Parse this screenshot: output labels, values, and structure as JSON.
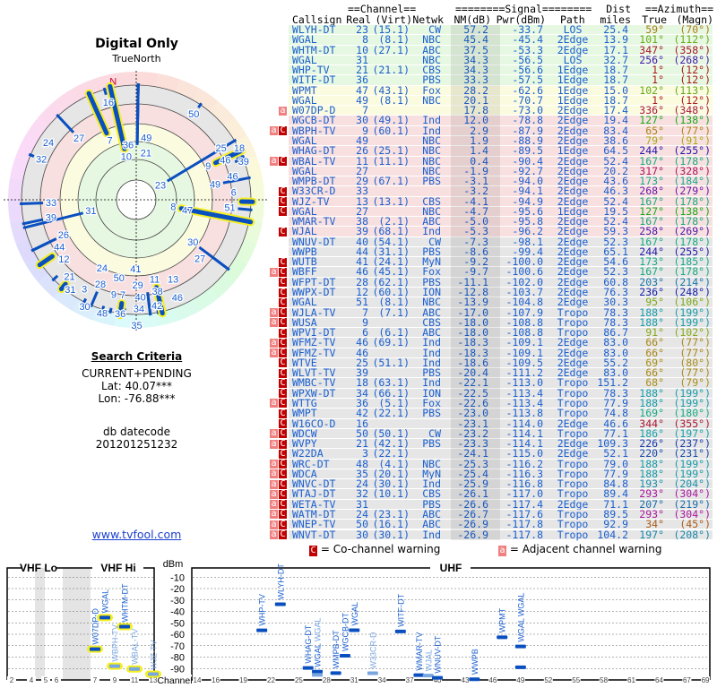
{
  "left_panel": {
    "title": "Digital Only",
    "north_label": "TrueNorth",
    "magnetic_north_label": "N",
    "search_criteria_heading": "Search Criteria",
    "criteria": "CURRENT+PENDING",
    "lat": "Lat: 40.07***",
    "lon": "Lon: -76.88***",
    "db_label": "db datecode",
    "db_value": "201201251232",
    "link": "www.tvfool.com"
  },
  "table": {
    "group_headers": {
      "channel": "==Channel==",
      "signal": "========Signal========",
      "dist": "Dist",
      "azimuth": "==Azimuth=="
    },
    "columns": [
      "Callsign",
      "Real",
      "(Virt)",
      "Netwk",
      "NM(dB)",
      "Pwr(dBm)",
      "Path",
      "miles",
      "True",
      "(Magn)"
    ],
    "row_fields": [
      "flag",
      "callsign",
      "real",
      "virt",
      "netwk",
      "nm",
      "pwr",
      "path",
      "dist",
      "true",
      "magn"
    ],
    "rows": [
      [
        "",
        "WLYH-DT",
        "23",
        "(15.1)",
        "CW",
        "57.2",
        "-33.7",
        "LOS",
        "25.4",
        "59°",
        "(70°)"
      ],
      [
        "",
        "WGAL",
        "8",
        "(8.1)",
        "NBC",
        "45.4",
        "-45.4",
        "2Edge",
        "13.9",
        "101°",
        "(112°)"
      ],
      [
        "",
        "WHTM-DT",
        "10",
        "(27.1)",
        "ABC",
        "37.5",
        "-53.3",
        "2Edge",
        "17.1",
        "347°",
        "(358°)"
      ],
      [
        "",
        "WGAL",
        "31",
        "",
        "NBC",
        "34.3",
        "-56.5",
        "LOS",
        "32.7",
        "256°",
        "(268°)"
      ],
      [
        "",
        "WHP-TV",
        "21",
        "(21.1)",
        "CBS",
        "34.3",
        "-56.6",
        "1Edge",
        "18.7",
        "1°",
        "(12°)"
      ],
      [
        "",
        "WITF-DT",
        "36",
        "",
        "PBS",
        "33.3",
        "-57.5",
        "1Edge",
        "18.7",
        "1°",
        "(12°)"
      ],
      [
        "",
        "WPMT",
        "47",
        "(43.1)",
        "Fox",
        "28.2",
        "-62.6",
        "1Edge",
        "15.0",
        "102°",
        "(113°)"
      ],
      [
        "",
        "WGAL",
        "49",
        "(8.1)",
        "NBC",
        "20.1",
        "-70.7",
        "1Edge",
        "18.7",
        "1°",
        "(12°)"
      ],
      [
        "a",
        "W07DP-D",
        "7",
        "",
        "",
        "17.8",
        "-73.0",
        "2Edge",
        "17.4",
        "336°",
        "(348°)"
      ],
      [
        "",
        "WGCB-DT",
        "30",
        "(49.1)",
        "Ind",
        "12.0",
        "-78.8",
        "2Edge",
        "19.4",
        "127°",
        "(138°)"
      ],
      [
        "aC",
        "WBPH-TV",
        "9",
        "(60.1)",
        "Ind",
        "2.9",
        "-87.9",
        "2Edge",
        "83.4",
        "65°",
        "(77°)"
      ],
      [
        "",
        "WGAL",
        "49",
        "",
        "NBC",
        "1.9",
        "-88.9",
        "2Edge",
        "38.6",
        "79°",
        "(91°)"
      ],
      [
        "",
        "WHAG-DT",
        "26",
        "(25.1)",
        "NBC",
        "1.4",
        "-89.5",
        "1Edge",
        "64.5",
        "244°",
        "(255°)"
      ],
      [
        "aC",
        "WBAL-TV",
        "11",
        "(11.1)",
        "NBC",
        "0.4",
        "-90.4",
        "2Edge",
        "52.4",
        "167°",
        "(178°)"
      ],
      [
        "",
        "WGAL",
        "27",
        "",
        "NBC",
        "-1.9",
        "-92.7",
        "2Edge",
        "20.2",
        "317°",
        "(328°)"
      ],
      [
        "",
        "WMPB-DT",
        "29",
        "(67.1)",
        "PBS",
        "-3.1",
        "-94.0",
        "2Edge",
        "43.6",
        "173°",
        "(184°)"
      ],
      [
        "C",
        "W33CR-D",
        "33",
        "",
        "",
        "-3.2",
        "-94.1",
        "2Edge",
        "46.3",
        "268°",
        "(279°)"
      ],
      [
        "C",
        "WJZ-TV",
        "13",
        "(13.1)",
        "CBS",
        "-4.1",
        "-94.9",
        "2Edge",
        "52.4",
        "167°",
        "(178°)"
      ],
      [
        "C",
        "WGAL",
        "27",
        "",
        "NBC",
        "-4.7",
        "-95.6",
        "1Edge",
        "19.5",
        "127°",
        "(138°)"
      ],
      [
        "",
        "WMAR-TV",
        "38",
        "(2.1)",
        "ABC",
        "-5.0",
        "-95.8",
        "2Edge",
        "52.4",
        "167°",
        "(178°)"
      ],
      [
        "C",
        "WJAL",
        "39",
        "(68.1)",
        "Ind",
        "-5.3",
        "-96.2",
        "2Edge",
        "59.3",
        "258°",
        "(269°)"
      ],
      [
        "",
        "WNUV-DT",
        "40",
        "(54.1)",
        "CW",
        "-7.3",
        "-98.1",
        "2Edge",
        "52.3",
        "167°",
        "(178°)"
      ],
      [
        "",
        "WWPB",
        "44",
        "(31.1)",
        "PBS",
        "-8.6",
        "-99.4",
        "2Edge",
        "65.1",
        "244°",
        "(255°)"
      ],
      [
        "C",
        "WUTB",
        "41",
        "(24.1)",
        "MyN",
        "-9.2",
        "-100.0",
        "2Edge",
        "54.6",
        "173°",
        "(185°)"
      ],
      [
        "aC",
        "WBFF",
        "46",
        "(45.1)",
        "Fox",
        "-9.7",
        "-100.6",
        "2Edge",
        "52.3",
        "167°",
        "(178°)"
      ],
      [
        "C",
        "WFPT-DT",
        "28",
        "(62.1)",
        "PBS",
        "-11.1",
        "-102.0",
        "2Edge",
        "60.8",
        "203°",
        "(214°)"
      ],
      [
        "C",
        "WWPX-DT",
        "12",
        "(60.1)",
        "ION",
        "-12.8",
        "-103.7",
        "2Edge",
        "76.3",
        "236°",
        "(248°)"
      ],
      [
        "C",
        "WGAL",
        "51",
        "(8.1)",
        "NBC",
        "-13.9",
        "-104.8",
        "2Edge",
        "30.3",
        "95°",
        "(106°)"
      ],
      [
        "aC",
        "WJLA-TV",
        "7",
        "(7.1)",
        "ABC",
        "-17.0",
        "-107.9",
        "Tropo",
        "78.3",
        "188°",
        "(199°)"
      ],
      [
        "aC",
        "WUSA",
        "9",
        "",
        "CBS",
        "-18.0",
        "-108.8",
        "Tropo",
        "78.3",
        "188°",
        "(199°)"
      ],
      [
        "C",
        "WPVI-DT",
        "6",
        "(6.1)",
        "ABC",
        "-18.0",
        "-108.8",
        "Tropo",
        "86.7",
        "91°",
        "(102°)"
      ],
      [
        "aC",
        "WFMZ-TV",
        "46",
        "(69.1)",
        "Ind",
        "-18.3",
        "-109.1",
        "2Edge",
        "83.0",
        "66°",
        "(77°)"
      ],
      [
        "aC",
        "WFMZ-TV",
        "46",
        "",
        "Ind",
        "-18.3",
        "-109.1",
        "2Edge",
        "83.0",
        "66°",
        "(77°)"
      ],
      [
        "C",
        "WTVE",
        "25",
        "(51.1)",
        "Ind",
        "-18.6",
        "-109.5",
        "2Edge",
        "55.2",
        "69°",
        "(80°)"
      ],
      [
        "C",
        "WLVT-TV",
        "39",
        "",
        "PBS",
        "-20.4",
        "-111.2",
        "2Edge",
        "83.0",
        "66°",
        "(77°)"
      ],
      [
        "C",
        "WMBC-TV",
        "18",
        "(63.1)",
        "Ind",
        "-22.1",
        "-113.0",
        "Tropo",
        "151.2",
        "68°",
        "(79°)"
      ],
      [
        "C",
        "WPXW-DT",
        "34",
        "(66.1)",
        "ION",
        "-22.5",
        "-113.4",
        "Tropo",
        "78.3",
        "188°",
        "(199°)"
      ],
      [
        "aC",
        "WTTG",
        "36",
        "(5.1)",
        "Fox",
        "-22.6",
        "-113.4",
        "Tropo",
        "77.9",
        "188°",
        "(199°)"
      ],
      [
        "C",
        "WMPT",
        "42",
        "(22.1)",
        "PBS",
        "-23.0",
        "-113.8",
        "Tropo",
        "74.8",
        "169°",
        "(180°)"
      ],
      [
        "C",
        "W16CO-D",
        "16",
        "",
        "",
        "-23.1",
        "-114.0",
        "2Edge",
        "46.6",
        "344°",
        "(355°)"
      ],
      [
        "aC",
        "WDCW",
        "50",
        "(50.1)",
        "CW",
        "-23.2",
        "-114.1",
        "Tropo",
        "77.1",
        "186°",
        "(197°)"
      ],
      [
        "aC",
        "WVPY",
        "21",
        "(42.1)",
        "PBS",
        "-23.3",
        "-114.1",
        "2Edge",
        "109.3",
        "226°",
        "(237°)"
      ],
      [
        "C",
        "W22DA",
        "3",
        "(22.1)",
        "",
        "-24.1",
        "-115.0",
        "2Edge",
        "52.1",
        "220°",
        "(231°)"
      ],
      [
        "aC",
        "WRC-DT",
        "48",
        "(4.1)",
        "NBC",
        "-25.3",
        "-116.2",
        "Tropo",
        "79.0",
        "188°",
        "(199°)"
      ],
      [
        "aC",
        "WDCA",
        "35",
        "(20.1)",
        "MyN",
        "-25.4",
        "-116.3",
        "Tropo",
        "77.9",
        "188°",
        "(199°)"
      ],
      [
        "aC",
        "WNVC-DT",
        "24",
        "(30.1)",
        "Ind",
        "-25.9",
        "-116.8",
        "Tropo",
        "84.8",
        "193°",
        "(204°)"
      ],
      [
        "aC",
        "WTAJ-DT",
        "32",
        "(10.1)",
        "CBS",
        "-26.1",
        "-117.0",
        "Tropo",
        "89.4",
        "293°",
        "(304°)"
      ],
      [
        "aC",
        "WETA-TV",
        "31",
        "",
        "PBS",
        "-26.6",
        "-117.4",
        "2Edge",
        "71.1",
        "207°",
        "(219°)"
      ],
      [
        "aC",
        "WATM-DT",
        "24",
        "(23.1)",
        "ABC",
        "-26.7",
        "-117.6",
        "Tropo",
        "89.5",
        "293°",
        "(304°)"
      ],
      [
        "aC",
        "WNEP-TV",
        "50",
        "(16.1)",
        "ABC",
        "-26.9",
        "-117.8",
        "Tropo",
        "92.9",
        "34°",
        "(45°)"
      ],
      [
        "aC",
        "WNVT-DT",
        "30",
        "(30.1)",
        "Ind",
        "-26.9",
        "-117.8",
        "Tropo",
        "104.2",
        "197°",
        "(208°)"
      ]
    ]
  },
  "spectrum_chart": {
    "legend_co": "= Co-channel warning",
    "legend_adj": "= Adjacent channel warning",
    "legend_co_flag": "C",
    "legend_adj_flag": "a",
    "vhf_lo_label": "VHF Lo",
    "vhf_hi_label": "VHF Hi",
    "uhf_label": "UHF",
    "y_unit": "dBm",
    "x_label": "Channel",
    "y_ticks": [
      -10,
      -20,
      -30,
      -40,
      -50,
      -60,
      -70,
      -80,
      -90
    ],
    "y_range": [
      -100,
      0
    ],
    "vhf_ticks": [
      2,
      4,
      5,
      6,
      7,
      9,
      11,
      13
    ],
    "uhf_ticks": [
      14,
      16,
      19,
      22,
      25,
      28,
      31,
      34,
      37,
      40,
      43,
      46,
      49,
      52,
      55,
      58,
      61,
      64,
      67,
      69
    ],
    "min_power_shown": -100,
    "grid": true
  },
  "colors": {
    "text_blue": "#1a5fd0",
    "bar_blue": "#0a4fc0",
    "bar_flagged": "#7aa6e0",
    "vhf_highlight": "#f4ee20",
    "co_channel": "#c00000",
    "adjacent": "#f08080",
    "zone_strong": "#e6f8e2",
    "zone_good": "#fbfbe0",
    "zone_weak": "#f8e0e0",
    "zone_poor": "#e6e6e6"
  }
}
